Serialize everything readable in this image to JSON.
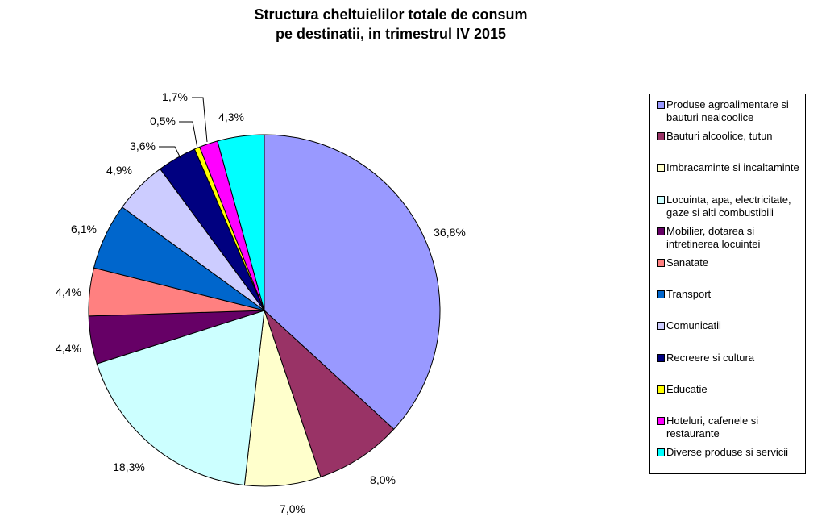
{
  "chart_data": {
    "type": "pie",
    "title": "Structura cheltuielilor totale de consum pe destinatii, in trimestrul IV 2015",
    "title_lines": [
      "Structura cheltuielilor totale de consum",
      "pe destinatii, in trimestrul IV 2015"
    ],
    "legend_placement": "right",
    "slices": [
      {
        "name": "Produse agroalimentare si bauturi nealcoolice",
        "value": 36.8,
        "label": "36,8%",
        "color": "#9999FF"
      },
      {
        "name": "Bauturi alcoolice, tutun",
        "value": 8.0,
        "label": "8,0%",
        "color": "#993366"
      },
      {
        "name": "Imbracaminte si incaltaminte",
        "value": 7.0,
        "label": "7,0%",
        "color": "#FFFFCC"
      },
      {
        "name": "Locuinta, apa, electricitate, gaze si alti combustibili",
        "value": 18.3,
        "label": "18,3%",
        "color": "#CCFFFF"
      },
      {
        "name": "Mobilier, dotarea si intretinerea locuintei",
        "value": 4.4,
        "label": "4,4%",
        "color": "#660066"
      },
      {
        "name": "Sanatate",
        "value": 4.4,
        "label": "4,4%",
        "color": "#FF8080"
      },
      {
        "name": "Transport",
        "value": 6.1,
        "label": "6,1%",
        "color": "#0066CC"
      },
      {
        "name": "Comunicatii",
        "value": 4.9,
        "label": "4,9%",
        "color": "#CCCCFF"
      },
      {
        "name": "Recreere si cultura",
        "value": 3.6,
        "label": "3,6%",
        "color": "#000080"
      },
      {
        "name": "Educatie",
        "value": 0.5,
        "label": "0,5%",
        "color": "#FFFF00"
      },
      {
        "name": "Hoteluri, cafenele si restaurante",
        "value": 1.7,
        "label": "1,7%",
        "color": "#FF00FF"
      },
      {
        "name": "Diverse produse si servicii",
        "value": 4.3,
        "label": "4,3%",
        "color": "#00FFFF"
      }
    ]
  }
}
